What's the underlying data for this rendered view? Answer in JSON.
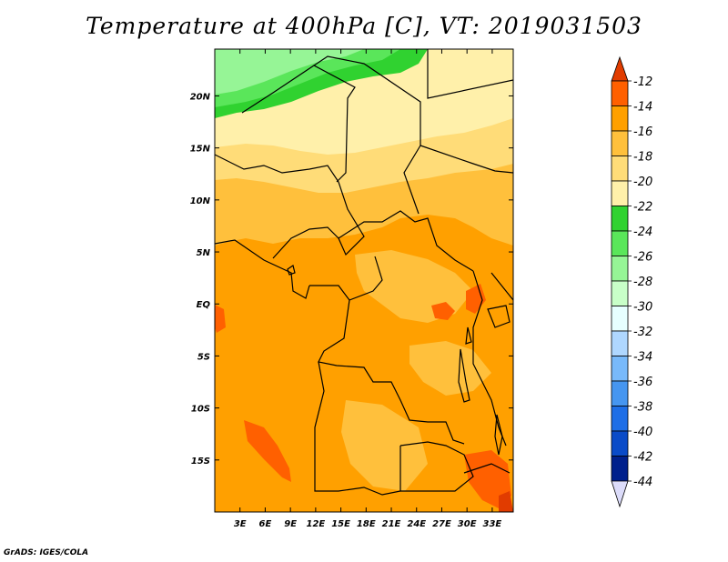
{
  "title": "Temperature at 400hPa [C], VT: 2019031503",
  "credit": "GrADS: IGES/COLA",
  "map": {
    "lon_range": [
      0,
      35.5
    ],
    "lat_range": [
      -20,
      24.5
    ],
    "x_ticks": [
      {
        "value": 3,
        "label": "3E"
      },
      {
        "value": 6,
        "label": "6E"
      },
      {
        "value": 9,
        "label": "9E"
      },
      {
        "value": 12,
        "label": "12E"
      },
      {
        "value": 15,
        "label": "15E"
      },
      {
        "value": 18,
        "label": "18E"
      },
      {
        "value": 21,
        "label": "21E"
      },
      {
        "value": 24,
        "label": "24E"
      },
      {
        "value": 27,
        "label": "27E"
      },
      {
        "value": 30,
        "label": "30E"
      },
      {
        "value": 33,
        "label": "33E"
      }
    ],
    "y_ticks": [
      {
        "value": 20,
        "label": "20N"
      },
      {
        "value": 15,
        "label": "15N"
      },
      {
        "value": 10,
        "label": "10N"
      },
      {
        "value": 5,
        "label": "5N"
      },
      {
        "value": 0,
        "label": "EQ"
      },
      {
        "value": -5,
        "label": "5S"
      },
      {
        "value": -10,
        "label": "10S"
      },
      {
        "value": -15,
        "label": "15S"
      }
    ]
  },
  "colorbar": {
    "colors": [
      "#fae8a0",
      "#e6ffe6",
      "#c8ffc8",
      "#96f596",
      "#5ae65a",
      "#30d230",
      "#fff0aa",
      "#ffdc78",
      "#ffc03c",
      "#ffa000",
      "#ff6000",
      "#e13c00"
    ],
    "levels": [
      {
        "value": -12,
        "label": "-12"
      },
      {
        "value": -14,
        "label": "-14"
      },
      {
        "value": -16,
        "label": "-16"
      },
      {
        "value": -18,
        "label": "-18"
      },
      {
        "value": -20,
        "label": "-20"
      },
      {
        "value": -22,
        "label": "-22"
      },
      {
        "value": -24,
        "label": "-24"
      },
      {
        "value": -26,
        "label": "-26"
      },
      {
        "value": -28,
        "label": "-28"
      },
      {
        "value": -30,
        "label": "-30"
      },
      {
        "value": -32,
        "label": "-32"
      },
      {
        "value": -34,
        "label": "-34"
      },
      {
        "value": -36,
        "label": "-36"
      },
      {
        "value": -38,
        "label": "-38"
      },
      {
        "value": -40,
        "label": "-40"
      },
      {
        "value": -42,
        "label": "-42"
      },
      {
        "value": -44,
        "label": "-44"
      }
    ],
    "bin_colors": [
      "#e13c00",
      "#ff6000",
      "#ffa000",
      "#ffc03c",
      "#ffdc78",
      "#fff0aa",
      "#30d230",
      "#5ae65a",
      "#96f596",
      "#c8ffc8",
      "#e6ffff",
      "#afd7ff",
      "#78b9fa",
      "#4696f0",
      "#1e6ee6",
      "#0a4bc8",
      "#00208c",
      "#000064"
    ],
    "top_arrow_color": "#e13c00",
    "bottom_arrow_color": "#dcdcfa"
  }
}
